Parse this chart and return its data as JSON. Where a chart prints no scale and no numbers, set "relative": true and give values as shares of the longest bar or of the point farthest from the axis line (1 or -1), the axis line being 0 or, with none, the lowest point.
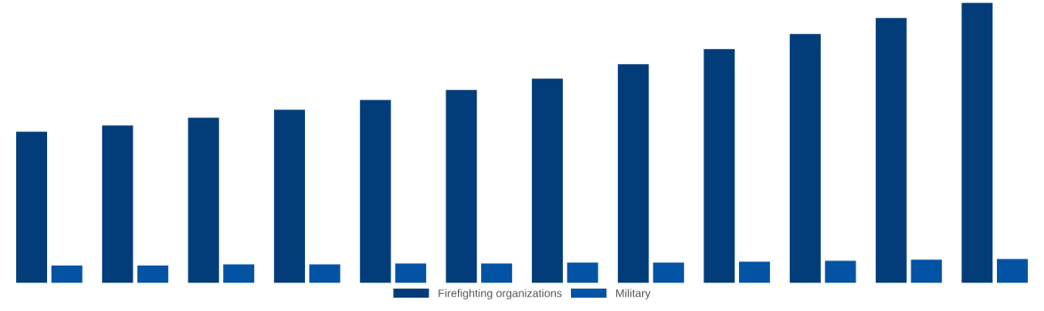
{
  "chart_data": {
    "type": "bar",
    "relative": true,
    "categories": [
      null,
      null,
      null,
      null,
      null,
      null,
      null,
      null,
      null,
      null,
      null,
      null
    ],
    "series": [
      {
        "name": "Firefighting organizations",
        "color": "#023d7a",
        "values": [
          0.54,
          0.562,
          0.59,
          0.619,
          0.654,
          0.689,
          0.73,
          0.781,
          0.835,
          0.889,
          0.946,
          1
        ]
      },
      {
        "name": "Military",
        "color": "#0353a4",
        "values": [
          0.063,
          0.063,
          0.067,
          0.067,
          0.07,
          0.07,
          0.073,
          0.073,
          0.076,
          0.079,
          0.083,
          0.086
        ]
      }
    ],
    "legend": "bottom",
    "grid": false
  }
}
